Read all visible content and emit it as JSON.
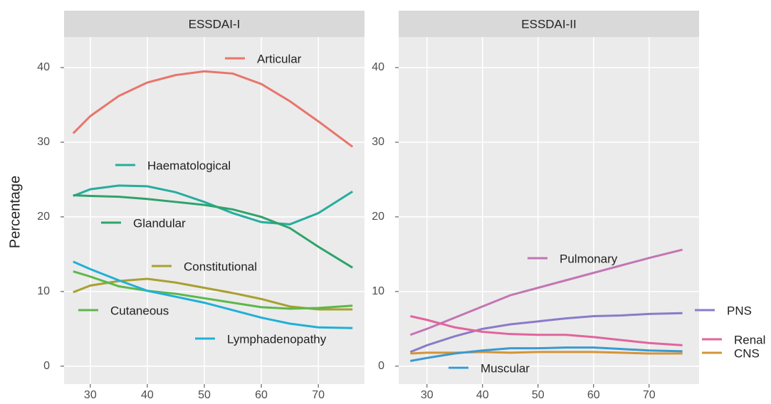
{
  "chart_data": [
    {
      "type": "line",
      "title": "ESSDAI-I",
      "ylabel": "Percentage",
      "x": [
        27,
        30,
        35,
        40,
        45,
        50,
        55,
        60,
        65,
        70,
        76
      ],
      "xlim": [
        25.4,
        78.1
      ],
      "xticks": [
        30,
        40,
        50,
        60,
        70
      ],
      "ylim": [
        -2.4,
        44.1
      ],
      "yticks": [
        0,
        10,
        20,
        30,
        40
      ],
      "grid": true,
      "series": [
        {
          "name": "Articular",
          "color": "#e8756a",
          "values": [
            31.2,
            33.5,
            36.2,
            38,
            39,
            39.5,
            39.2,
            37.8,
            35.5,
            32.8,
            29.4
          ]
        },
        {
          "name": "Haematological",
          "color": "#26ad9e",
          "values": [
            22.8,
            23.7,
            24.2,
            24.1,
            23.3,
            22,
            20.5,
            19.3,
            19,
            20.5,
            23.4
          ]
        },
        {
          "name": "Glandular",
          "color": "#2fa36b",
          "values": [
            22.9,
            22.8,
            22.7,
            22.4,
            22,
            21.6,
            21,
            20,
            18.5,
            16,
            13.2
          ]
        },
        {
          "name": "Constitutional",
          "color": "#a8a030",
          "values": [
            9.9,
            10.8,
            11.4,
            11.7,
            11.2,
            10.5,
            9.8,
            9,
            8,
            7.6,
            7.6
          ]
        },
        {
          "name": "Cutaneous",
          "color": "#5cb84a",
          "values": [
            12.7,
            12,
            10.7,
            10.1,
            9.7,
            9.1,
            8.5,
            7.9,
            7.7,
            7.8,
            8.1
          ]
        },
        {
          "name": "Lymphadenopathy",
          "color": "#1fb0d8",
          "values": [
            14,
            13,
            11.5,
            10.1,
            9.3,
            8.5,
            7.5,
            6.5,
            5.7,
            5.2,
            5.1
          ]
        }
      ]
    },
    {
      "type": "line",
      "title": "ESSDAI-II",
      "x": [
        27,
        30,
        35,
        40,
        45,
        50,
        55,
        60,
        65,
        70,
        76
      ],
      "xlim": [
        24.9,
        79
      ],
      "xticks": [
        30,
        40,
        50,
        60,
        70
      ],
      "ylim": [
        -2.4,
        44.1
      ],
      "yticks": [
        0,
        10,
        20,
        30,
        40
      ],
      "grid": true,
      "series": [
        {
          "name": "Pulmonary",
          "color": "#c276b4",
          "values": [
            4.2,
            5,
            6.5,
            8,
            9.5,
            10.5,
            11.5,
            12.5,
            13.5,
            14.5,
            15.6
          ]
        },
        {
          "name": "PNS",
          "color": "#8b7bc8",
          "values": [
            1.9,
            2.8,
            4,
            5,
            5.6,
            6,
            6.4,
            6.7,
            6.8,
            7,
            7.1
          ]
        },
        {
          "name": "Renal",
          "color": "#e0659c",
          "values": [
            6.7,
            6.2,
            5.2,
            4.6,
            4.3,
            4.2,
            4.2,
            3.9,
            3.5,
            3.1,
            2.8
          ]
        },
        {
          "name": "CNS",
          "color": "#d4943a",
          "values": [
            1.7,
            1.8,
            1.8,
            1.9,
            1.8,
            1.9,
            1.9,
            1.9,
            1.8,
            1.7,
            1.7
          ]
        },
        {
          "name": "Muscular",
          "color": "#3a9ad0",
          "values": [
            0.7,
            1.1,
            1.7,
            2.1,
            2.4,
            2.4,
            2.5,
            2.5,
            2.3,
            2.1,
            2.0
          ]
        }
      ]
    }
  ]
}
